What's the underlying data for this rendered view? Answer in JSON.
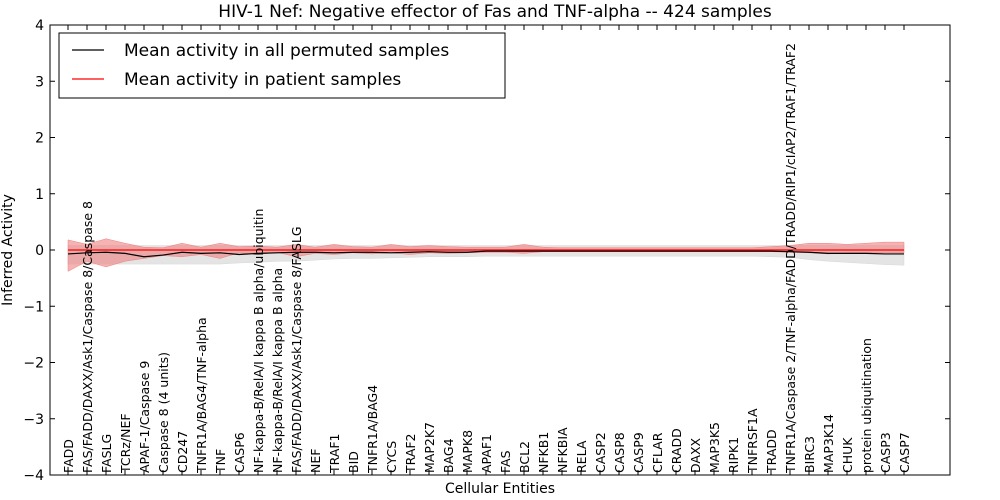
{
  "chart_data": {
    "type": "line",
    "title": "HIV-1 Nef: Negative effector of Fas and TNF-alpha -- 424 samples",
    "xlabel": "Cellular Entities",
    "ylabel": "Inferred Activity",
    "ylim": [
      -4,
      4
    ],
    "yticks": [
      -4,
      -3,
      -2,
      -1,
      0,
      1,
      2,
      3,
      4
    ],
    "ytick_labels": [
      "−4",
      "−3",
      "−2",
      "−1",
      "0",
      "1",
      "2",
      "3",
      "4"
    ],
    "grid": false,
    "legend_position": "top-left",
    "categories": [
      "FADD",
      "FAS/FADD/DAXX/Ask1/Caspase 8/Caspase 8",
      "FASLG",
      "TCRz/NEF",
      "APAF-1/Caspase 9",
      "Caspase 8 (4 units)",
      "CD247",
      "TNFR1A/BAG4/TNF-alpha",
      "TNF",
      "CASP6",
      "NF-kappa-B/RelA/I kappa B alpha/ubiquitin",
      "NF-kappa-B/RelA/I kappa B alpha",
      "FAS/FADD/DAXX/Ask1/Caspase 8/FASLG",
      "NEF",
      "TRAF1",
      "BID",
      "TNFR1A/BAG4",
      "CYCS",
      "TRAF2",
      "MAP2K7",
      "BAG4",
      "MAPK8",
      "APAF1",
      "FAS",
      "BCL2",
      "NFKB1",
      "NFKBIA",
      "RELA",
      "CASP2",
      "CASP8",
      "CASP9",
      "CFLAR",
      "CRADD",
      "DAXX",
      "MAP3K5",
      "RIPK1",
      "TNFRSF1A",
      "TRADD",
      "TNFR1A/Caspase 2/TNF-alpha/FADD/TRADD/RIP1/cIAP2/TRAF1/TRAF2",
      "BIRC3",
      "MAP3K14",
      "CHUK",
      "protein ubiquitination",
      "CASP3",
      "CASP7"
    ],
    "series": [
      {
        "name": "Mean activity in all permuted samples",
        "color": "#000000",
        "values": [
          -0.07,
          -0.05,
          -0.04,
          -0.06,
          -0.12,
          -0.09,
          -0.04,
          -0.06,
          -0.05,
          -0.08,
          -0.06,
          -0.05,
          -0.04,
          -0.04,
          -0.05,
          -0.04,
          -0.04,
          -0.05,
          -0.04,
          -0.03,
          -0.04,
          -0.04,
          -0.02,
          -0.02,
          -0.02,
          -0.02,
          -0.02,
          -0.02,
          -0.02,
          -0.02,
          -0.02,
          -0.02,
          -0.02,
          -0.02,
          -0.02,
          -0.02,
          -0.02,
          -0.02,
          -0.03,
          -0.04,
          -0.06,
          -0.06,
          -0.06,
          -0.07,
          -0.07
        ],
        "band_lower": [
          -0.25,
          -0.25,
          -0.25,
          -0.25,
          -0.25,
          -0.25,
          -0.25,
          -0.25,
          -0.25,
          -0.23,
          -0.22,
          -0.2,
          -0.2,
          -0.18,
          -0.16,
          -0.15,
          -0.15,
          -0.14,
          -0.13,
          -0.12,
          -0.12,
          -0.12,
          -0.11,
          -0.11,
          -0.11,
          -0.11,
          -0.11,
          -0.11,
          -0.11,
          -0.11,
          -0.11,
          -0.11,
          -0.11,
          -0.11,
          -0.11,
          -0.11,
          -0.11,
          -0.12,
          -0.13,
          -0.17,
          -0.2,
          -0.22,
          -0.24,
          -0.26,
          -0.27
        ],
        "band_upper": [
          0.08,
          0.08,
          0.08,
          0.08,
          0.08,
          0.08,
          0.08,
          0.08,
          0.08,
          0.08,
          0.08,
          0.08,
          0.08,
          0.08,
          0.08,
          0.08,
          0.08,
          0.08,
          0.08,
          0.08,
          0.08,
          0.08,
          0.08,
          0.08,
          0.08,
          0.08,
          0.08,
          0.08,
          0.08,
          0.08,
          0.08,
          0.08,
          0.08,
          0.08,
          0.08,
          0.08,
          0.08,
          0.08,
          0.08,
          0.08,
          0.08,
          0.08,
          0.08,
          0.08,
          0.08
        ],
        "band_color": "#d9d9d9"
      },
      {
        "name": "Mean activity in patient samples",
        "color": "#ff0000",
        "values": [
          0.0,
          0.0,
          0.0,
          0.0,
          0.0,
          0.0,
          0.0,
          0.0,
          0.0,
          0.0,
          0.0,
          0.0,
          0.0,
          0.0,
          0.0,
          0.0,
          0.0,
          0.0,
          0.0,
          0.0,
          0.0,
          0.0,
          0.0,
          0.0,
          0.0,
          0.0,
          0.0,
          0.0,
          0.0,
          0.0,
          0.0,
          0.0,
          0.0,
          0.0,
          0.0,
          0.0,
          0.0,
          0.0,
          0.0,
          0.0,
          0.0,
          0.0,
          0.0,
          0.0,
          0.0
        ],
        "band_lower": [
          -0.38,
          -0.2,
          -0.3,
          -0.2,
          -0.15,
          -0.1,
          -0.12,
          -0.08,
          -0.15,
          -0.05,
          -0.08,
          -0.04,
          -0.12,
          -0.06,
          -0.08,
          -0.05,
          -0.07,
          -0.05,
          -0.08,
          -0.05,
          -0.06,
          -0.05,
          -0.04,
          -0.04,
          -0.06,
          -0.03,
          -0.03,
          -0.03,
          -0.03,
          -0.03,
          -0.03,
          -0.03,
          -0.03,
          -0.03,
          -0.03,
          -0.03,
          -0.03,
          -0.03,
          -0.04,
          -0.05,
          -0.07,
          -0.05,
          -0.05,
          -0.05,
          -0.05
        ],
        "band_upper": [
          0.18,
          0.1,
          0.2,
          0.12,
          0.05,
          0.04,
          0.12,
          0.05,
          0.12,
          0.06,
          0.07,
          0.05,
          0.1,
          0.05,
          0.1,
          0.06,
          0.05,
          0.1,
          0.06,
          0.08,
          0.06,
          0.05,
          0.05,
          0.05,
          0.1,
          0.05,
          0.04,
          0.04,
          0.04,
          0.04,
          0.04,
          0.04,
          0.04,
          0.04,
          0.04,
          0.04,
          0.04,
          0.06,
          0.08,
          0.12,
          0.12,
          0.1,
          0.12,
          0.14,
          0.14
        ],
        "band_color": "#f08080"
      }
    ],
    "reference_line": {
      "y": 0,
      "style": "dotted"
    }
  }
}
